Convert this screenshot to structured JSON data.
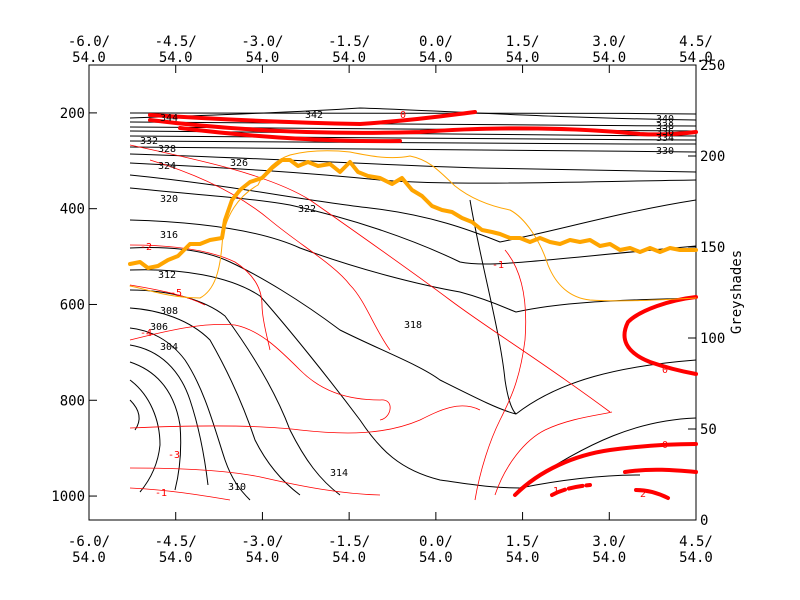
{
  "chart_data": {
    "type": "contour",
    "title": "",
    "xaxis": {
      "range": [
        -6.0,
        4.5
      ],
      "ticks": [
        -6.0,
        -4.5,
        -3.0,
        -1.5,
        0.0,
        1.5,
        3.0,
        4.5
      ],
      "top_labels": [
        [
          "-6.0/",
          "54.0"
        ],
        [
          "-4.5/",
          "54.0"
        ],
        [
          "-3.0/",
          "54.0"
        ],
        [
          "-1.5/",
          "54.0"
        ],
        [
          "0.0/",
          "54.0"
        ],
        [
          "1.5/",
          "54.0"
        ],
        [
          "3.0/",
          "54.0"
        ],
        [
          "4.5/",
          "54.0"
        ]
      ],
      "bottom_labels": [
        [
          "-6.0/",
          "54.0"
        ],
        [
          "-4.5/",
          "54.0"
        ],
        [
          "-3.0/",
          "54.0"
        ],
        [
          "-1.5/",
          "54.0"
        ],
        [
          "0.0/",
          "54.0"
        ],
        [
          "1.5/",
          "54.0"
        ],
        [
          "3.0/",
          "54.0"
        ],
        [
          "4.5/",
          "54.0"
        ]
      ]
    },
    "yaxis_left": {
      "range": [
        1050,
        100
      ],
      "ticks": [
        200,
        400,
        600,
        800,
        1000
      ],
      "labels": [
        "200",
        "400",
        "600",
        "800",
        "1000"
      ]
    },
    "yaxis_right": {
      "label": "Greyshades",
      "range": [
        0,
        250
      ],
      "ticks": [
        0,
        50,
        100,
        150,
        200,
        250
      ],
      "labels": [
        "0",
        "50",
        "100",
        "150",
        "200",
        "250"
      ]
    },
    "contour_labels_black": [
      "344",
      "342",
      "340",
      "338",
      "336",
      "334",
      "332",
      "330",
      "328",
      "326",
      "324",
      "322",
      "320",
      "318",
      "316",
      "314",
      "312",
      "310",
      "308",
      "306",
      "304"
    ],
    "contour_labels_red": [
      "0",
      "-1",
      "-2",
      "-3",
      "-4",
      "-5",
      "1",
      "2"
    ],
    "legend": "none",
    "grid": false,
    "colors": {
      "theta": "#000000",
      "wind": "#ff0000",
      "tropopause": "#ffa500",
      "frame": "#000000"
    }
  }
}
